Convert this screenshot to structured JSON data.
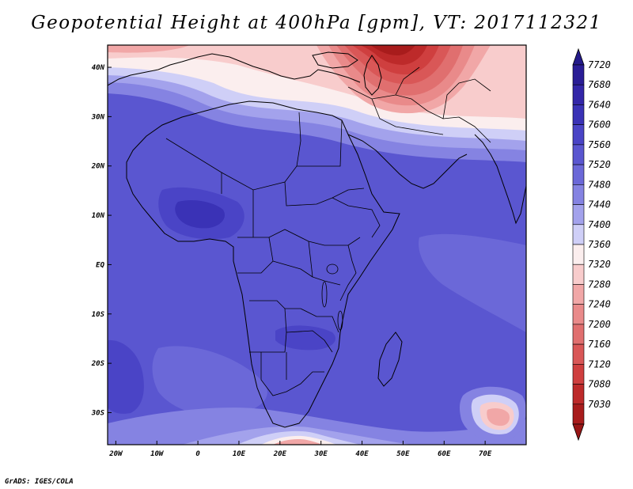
{
  "title": "Geopotential Height at 400hPa [gpm], VT: 2017112321",
  "credit": "GrADS: IGES/COLA",
  "map": {
    "lon_range": [
      -22,
      80
    ],
    "lat_range": [
      -36.5,
      44.5
    ],
    "lon_ticks": [
      {
        "lon": -20,
        "label": "20W"
      },
      {
        "lon": -10,
        "label": "10W"
      },
      {
        "lon": 0,
        "label": "0"
      },
      {
        "lon": 10,
        "label": "10E"
      },
      {
        "lon": 20,
        "label": "20E"
      },
      {
        "lon": 30,
        "label": "30E"
      },
      {
        "lon": 40,
        "label": "40E"
      },
      {
        "lon": 50,
        "label": "50E"
      },
      {
        "lon": 60,
        "label": "60E"
      },
      {
        "lon": 70,
        "label": "70E"
      }
    ],
    "lat_ticks": [
      {
        "lat": 40,
        "label": "40N"
      },
      {
        "lat": 30,
        "label": "30N"
      },
      {
        "lat": 20,
        "label": "20N"
      },
      {
        "lat": 10,
        "label": "10N"
      },
      {
        "lat": 0,
        "label": "EQ"
      },
      {
        "lat": -10,
        "label": "10S"
      },
      {
        "lat": -20,
        "label": "20S"
      },
      {
        "lat": -30,
        "label": "30S"
      }
    ]
  },
  "colorbar": {
    "levels": [
      {
        "label": "7720",
        "color": "#2a1d96"
      },
      {
        "label": "7680",
        "color": "#3326a8"
      },
      {
        "label": "7640",
        "color": "#3a32b6"
      },
      {
        "label": "7600",
        "color": "#4a44c6"
      },
      {
        "label": "7560",
        "color": "#5a56d0"
      },
      {
        "label": "7520",
        "color": "#6b68d8"
      },
      {
        "label": "7480",
        "color": "#8583e2"
      },
      {
        "label": "7440",
        "color": "#a3a2ec"
      },
      {
        "label": "7400",
        "color": "#cfcff7"
      },
      {
        "label": "7360",
        "color": "#fbeeee"
      },
      {
        "label": "7320",
        "color": "#f8cccc"
      },
      {
        "label": "7280",
        "color": "#f1a7a7"
      },
      {
        "label": "7240",
        "color": "#e98a8a"
      },
      {
        "label": "7200",
        "color": "#e06f6f"
      },
      {
        "label": "7160",
        "color": "#d95757"
      },
      {
        "label": "7120",
        "color": "#cf3f3f"
      },
      {
        "label": "7080",
        "color": "#bd2a2a"
      },
      {
        "label": "7030",
        "color": "#a81c1c"
      }
    ],
    "top_arrow_color": "#241a8a",
    "bottom_arrow_color": "#981616"
  }
}
